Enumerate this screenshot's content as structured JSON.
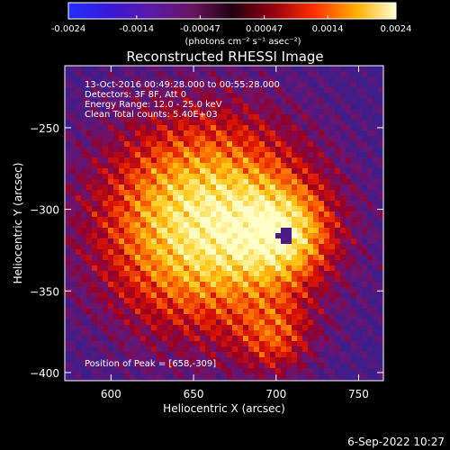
{
  "chart_data": {
    "type": "heatmap",
    "title": "Reconstructed RHESSI Image",
    "xlabel": "Heliocentric X (arcsec)",
    "ylabel": "Heliocentric Y (arcsec)",
    "xlim": [
      572,
      765
    ],
    "ylim": [
      -405,
      -212
    ],
    "xticks": [
      600,
      650,
      700,
      750
    ],
    "yticks": [
      -250,
      -300,
      -350,
      -400
    ],
    "colorbar": {
      "ticks": [
        "-0.0024",
        "-0.0014",
        "-0.00047",
        "0.00047",
        "0.0014",
        "0.0024"
      ],
      "unit_label": "(photons cm⁻² s⁻¹ asec⁻²)",
      "range": [
        -0.0024,
        0.0024
      ]
    },
    "info_lines": [
      "13-Oct-2016 00:49:28.000 to 00:55:28.000",
      "Detectors: 3F 8F, Att 0",
      "Energy Range: 12.0 - 25.0 keV",
      "Clean     Total counts: 5.40E+03"
    ],
    "peak_label": "Position of Peak = [658,-309]",
    "peak": [
      658,
      -309
    ],
    "secondary_peak": [
      706,
      -315
    ]
  },
  "footer": {
    "timestamp": "6-Sep-2022 10:27"
  }
}
